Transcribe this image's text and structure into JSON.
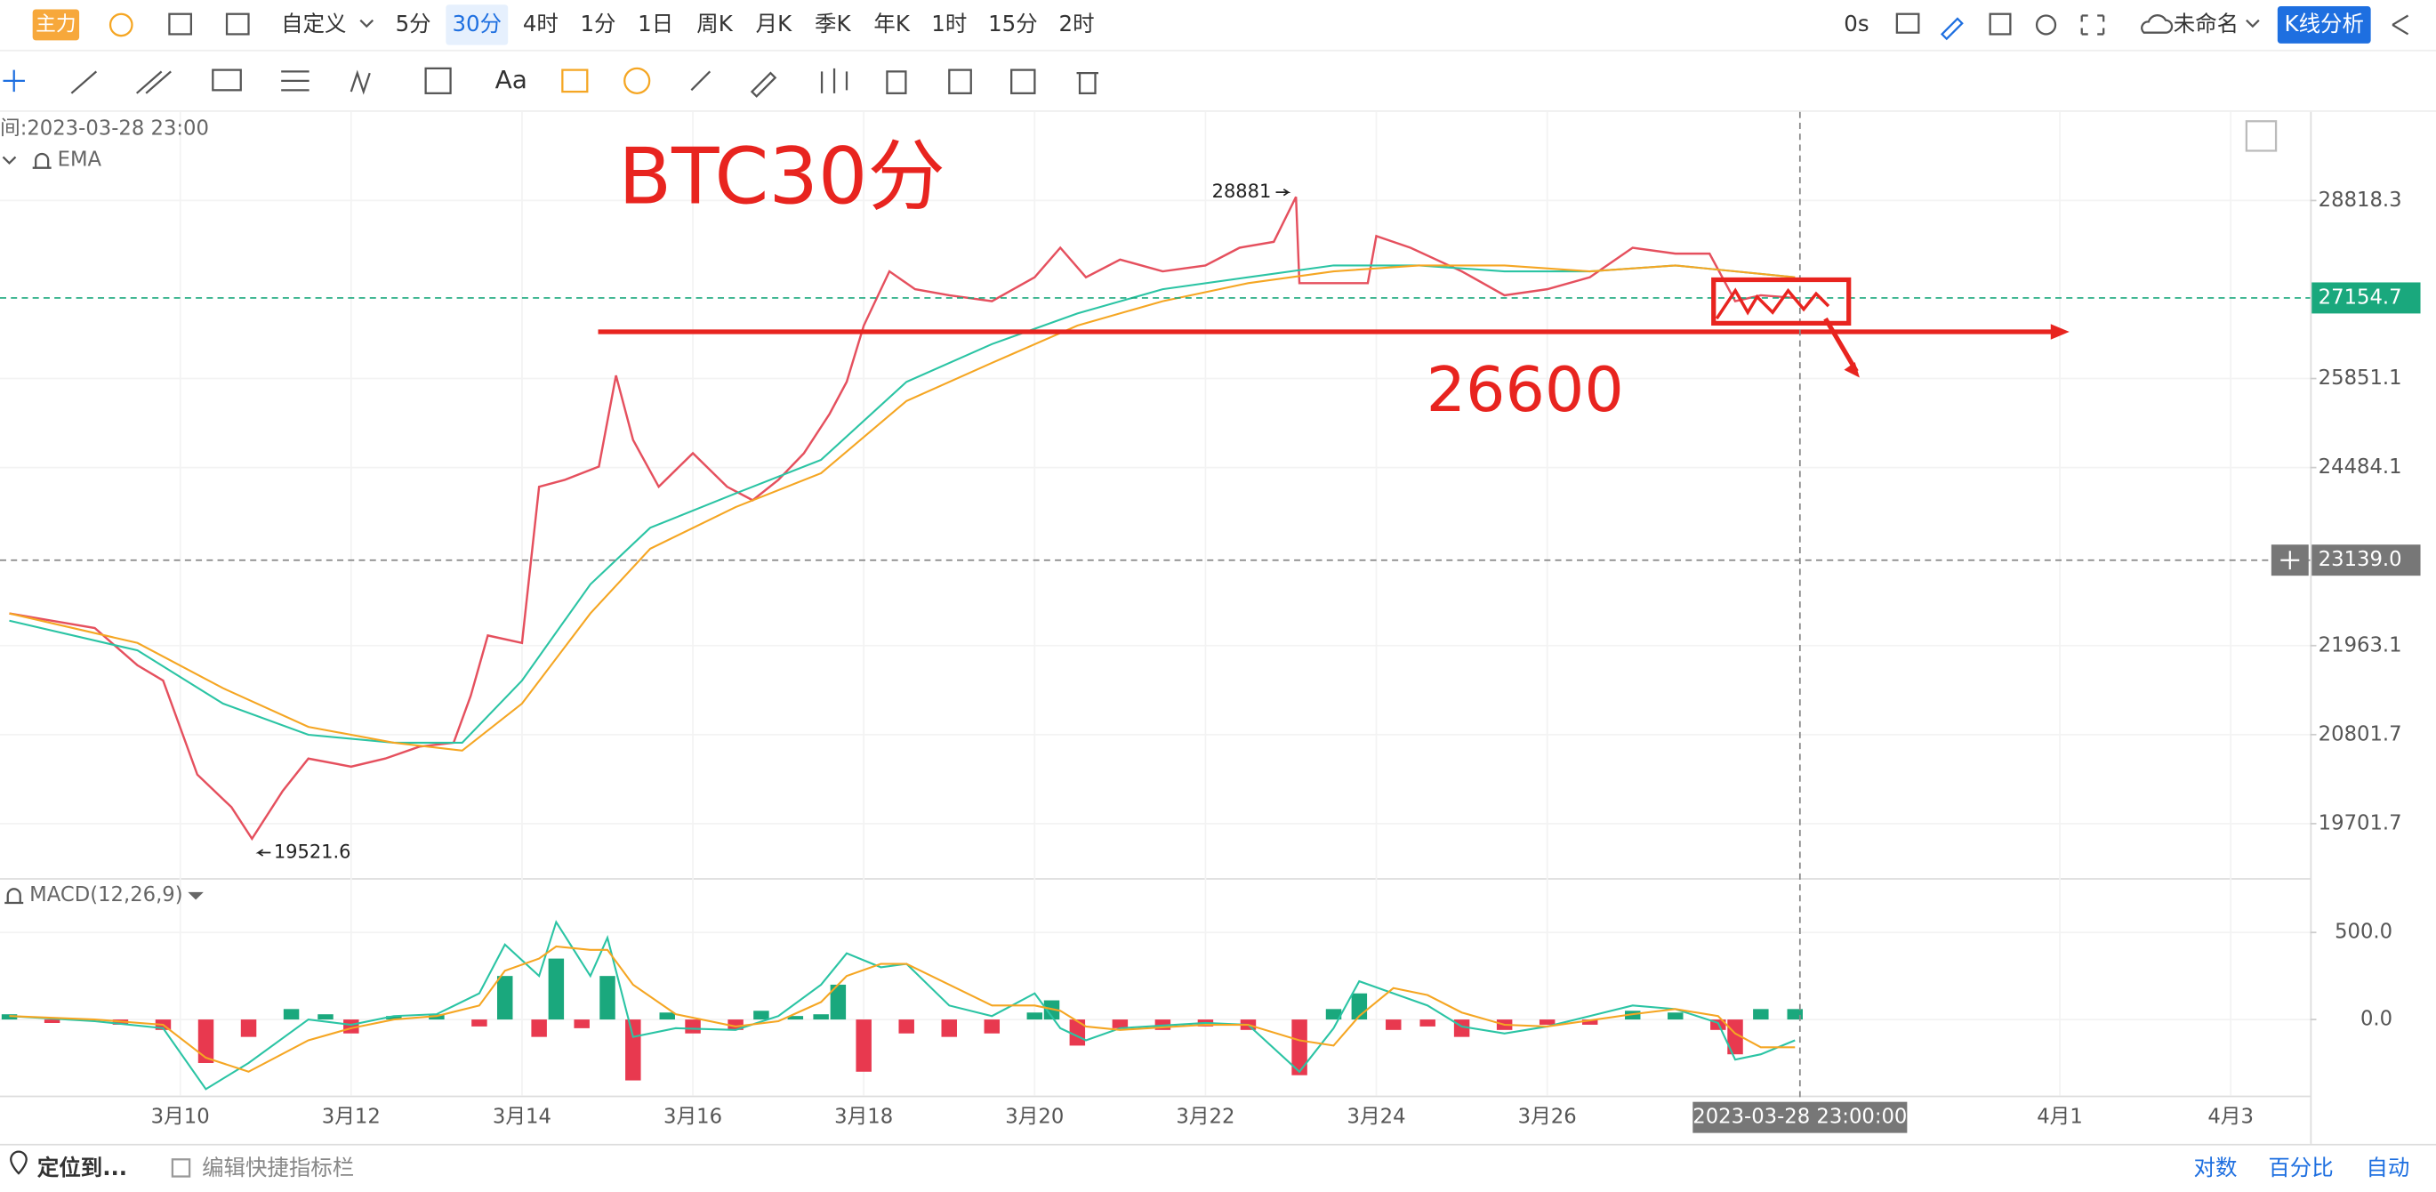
{
  "toolbar": {
    "badge": "主力",
    "custom": "自定义",
    "intervals": [
      "5分",
      "30分",
      "4时",
      "1分",
      "1日",
      "周K",
      "月K",
      "季K",
      "年K",
      "1时",
      "15分",
      "2时"
    ],
    "timer": "0s",
    "layout_name": "未命名",
    "analysis_button": "K线分析"
  },
  "drawing_tools": {
    "text_tool": "Aa"
  },
  "legend": {
    "time": "间:2023-03-28 23:00",
    "indicator": "EMA",
    "macd_indicator": "MACD(12,26,9)"
  },
  "footer": {
    "locate": "定位到...",
    "edit_shortcuts": "编辑快捷指标栏",
    "log": "对数",
    "percent": "百分比",
    "auto": "自动"
  },
  "chart_data": [
    {
      "type": "line",
      "title": "BTC30分",
      "log_scale": true,
      "grid": true,
      "xlim": [
        7.89,
        34.93
      ],
      "xticks": [
        {
          "value": 10,
          "label": "3月10"
        },
        {
          "value": 12,
          "label": "3月12"
        },
        {
          "value": 14,
          "label": "3月14"
        },
        {
          "value": 16,
          "label": "3月16"
        },
        {
          "value": 18,
          "label": "3月18"
        },
        {
          "value": 20,
          "label": "3月20"
        },
        {
          "value": 22,
          "label": "3月22"
        },
        {
          "value": 24,
          "label": "3月24"
        },
        {
          "value": 26,
          "label": "3月26"
        },
        {
          "value": 32,
          "label": "4月1"
        },
        {
          "value": 34,
          "label": "4月3"
        }
      ],
      "ylim": [
        19058,
        30420
      ],
      "yticks": [
        19701.7,
        20801.7,
        21963.1,
        24484.1,
        25851.1,
        28818.3
      ],
      "series": [
        {
          "color": "#e5505e",
          "x": [
            8,
            8.5,
            9,
            9.5,
            9.8,
            10.2,
            10.6,
            10.84,
            11.2,
            11.5,
            12,
            12.4,
            12.8,
            13.2,
            13.4,
            13.6,
            14,
            14.2,
            14.5,
            14.9,
            15.1,
            15.3,
            15.6,
            16,
            16.4,
            16.7,
            17,
            17.3,
            17.6,
            17.8,
            18,
            18.3,
            18.6,
            19,
            19.5,
            20,
            20.3,
            20.6,
            21,
            21.5,
            22,
            22.4,
            22.8,
            23.06,
            23.1,
            23.5,
            23.9,
            24,
            24.4,
            25,
            25.5,
            26,
            26.5,
            27,
            27.5,
            27.9,
            28.2,
            28.5,
            28.9
          ],
          "values": [
            22400,
            22300,
            22200,
            21700,
            21500,
            20300,
            19900,
            19521.6,
            20100,
            20500,
            20400,
            20500,
            20650,
            20700,
            21300,
            22100,
            22000,
            24200,
            24300,
            24500,
            25900,
            24900,
            24200,
            24700,
            24200,
            24000,
            24300,
            24700,
            25300,
            25800,
            26700,
            27600,
            27300,
            27200,
            27100,
            27500,
            28000,
            27500,
            27800,
            27600,
            27700,
            28000,
            28100,
            28881,
            27400,
            27400,
            27400,
            28200,
            28000,
            27600,
            27200,
            27300,
            27500,
            28000,
            27900,
            27900,
            27100,
            27200,
            27154.7
          ]
        },
        {
          "color": "#2bc4a4",
          "x": [
            8,
            9.5,
            10.5,
            11.5,
            12.5,
            13.3,
            14,
            14.8,
            15.5,
            16.5,
            17.5,
            18.5,
            19.5,
            20.5,
            21.5,
            22.5,
            23.5,
            24.5,
            25.5,
            26.5,
            27.5,
            28.9
          ],
          "values": [
            22300,
            21900,
            21200,
            20800,
            20700,
            20700,
            21500,
            22800,
            23600,
            24100,
            24600,
            25800,
            26400,
            26900,
            27300,
            27500,
            27700,
            27700,
            27600,
            27600,
            27700,
            27500
          ]
        },
        {
          "color": "#f5a623",
          "x": [
            8,
            9.5,
            10.5,
            11.5,
            12.5,
            13.3,
            14,
            14.8,
            15.5,
            16.5,
            17.5,
            18.5,
            19.5,
            20.5,
            21.5,
            22.5,
            23.5,
            24.5,
            25.5,
            26.5,
            27.5,
            28.9
          ],
          "values": [
            22400,
            22000,
            21400,
            20900,
            20700,
            20600,
            21200,
            22400,
            23300,
            23900,
            24400,
            25500,
            26100,
            26700,
            27100,
            27400,
            27600,
            27700,
            27700,
            27600,
            27700,
            27500
          ]
        }
      ],
      "last_price": {
        "value": 27154.7,
        "color": "#1aa87d"
      },
      "crosshair": {
        "y": {
          "value": 23139,
          "label": "23139.0"
        },
        "x": {
          "value": 28.958,
          "label": "2023-03-28 23:00:00"
        }
      },
      "high": {
        "x": 23.06,
        "value": 28881
      },
      "low": {
        "x": 10.84,
        "value": 19521.6
      },
      "level": {
        "value": 26600,
        "color": "#e8241f"
      }
    },
    {
      "type": "macd",
      "xlim": [
        7.89,
        34.93
      ],
      "ylim": [
        -437.5,
        812.5
      ],
      "yticks": [
        {
          "value": 500,
          "label": "500.0"
        },
        {
          "value": 0,
          "label": "0.0"
        }
      ],
      "histogram": {
        "up_color": "#1aa87d",
        "down_color": "#e8394f",
        "x": [
          8,
          8.5,
          9.3,
          9.8,
          10.3,
          10.8,
          11.3,
          11.7,
          12,
          12.5,
          13,
          13.5,
          13.8,
          14.2,
          14.4,
          14.7,
          15,
          15.3,
          15.7,
          16,
          16.5,
          16.8,
          17.2,
          17.5,
          17.7,
          18,
          18.5,
          19,
          19.5,
          20,
          20.2,
          20.5,
          21,
          21.5,
          22,
          22.5,
          23.1,
          23.5,
          23.8,
          24.2,
          24.6,
          25,
          25.5,
          26,
          26.5,
          27,
          27.5,
          28,
          28.2,
          28.5,
          28.9
        ],
        "values": [
          30,
          -20,
          -30,
          -60,
          -250,
          -100,
          60,
          30,
          -80,
          20,
          30,
          -40,
          250,
          -100,
          350,
          -50,
          250,
          -350,
          40,
          -80,
          -60,
          50,
          20,
          30,
          200,
          -300,
          -80,
          -100,
          -80,
          40,
          110,
          -150,
          -50,
          -60,
          -40,
          -60,
          -320,
          60,
          150,
          -60,
          -40,
          -100,
          -60,
          -30,
          -30,
          50,
          40,
          -60,
          -200,
          60,
          60
        ]
      },
      "series": [
        {
          "color": "#2bc4a4",
          "x": [
            8,
            9,
            9.8,
            10.3,
            10.8,
            11.5,
            12,
            12.5,
            13,
            13.5,
            13.8,
            14.2,
            14.4,
            14.8,
            15,
            15.3,
            15.8,
            16.5,
            17,
            17.5,
            17.8,
            18.2,
            18.5,
            19,
            19.5,
            20,
            20.3,
            20.6,
            21,
            22,
            22.5,
            23.1,
            23.5,
            23.8,
            24.2,
            24.6,
            25,
            25.5,
            26,
            27,
            27.5,
            28,
            28.2,
            28.5,
            28.9
          ],
          "values": [
            20,
            -10,
            -50,
            -400,
            -250,
            0,
            -30,
            20,
            30,
            150,
            430,
            250,
            560,
            250,
            470,
            -100,
            -50,
            -60,
            20,
            200,
            380,
            300,
            320,
            80,
            20,
            150,
            -50,
            -120,
            -50,
            -20,
            -30,
            -300,
            -50,
            220,
            150,
            80,
            -40,
            -80,
            -40,
            80,
            60,
            -20,
            -230,
            -200,
            -120
          ]
        },
        {
          "color": "#f5a623",
          "x": [
            8,
            9,
            9.8,
            10.3,
            10.8,
            11.5,
            12,
            12.5,
            13,
            13.5,
            13.8,
            14.2,
            14.4,
            14.8,
            15,
            15.3,
            15.8,
            16.5,
            17,
            17.5,
            17.8,
            18.2,
            18.5,
            19,
            19.5,
            20,
            20.3,
            20.6,
            21,
            22,
            22.5,
            23.1,
            23.5,
            23.8,
            24.2,
            24.6,
            25,
            25.5,
            26,
            27,
            27.5,
            28,
            28.2,
            28.5,
            28.9
          ],
          "values": [
            20,
            0,
            -30,
            -220,
            -300,
            -120,
            -50,
            0,
            20,
            80,
            280,
            350,
            420,
            400,
            400,
            200,
            30,
            -40,
            -10,
            100,
            250,
            320,
            320,
            200,
            80,
            80,
            50,
            -40,
            -60,
            -30,
            -30,
            -120,
            -150,
            20,
            180,
            140,
            40,
            -30,
            -40,
            30,
            60,
            20,
            -80,
            -160,
            -160
          ]
        }
      ]
    }
  ]
}
